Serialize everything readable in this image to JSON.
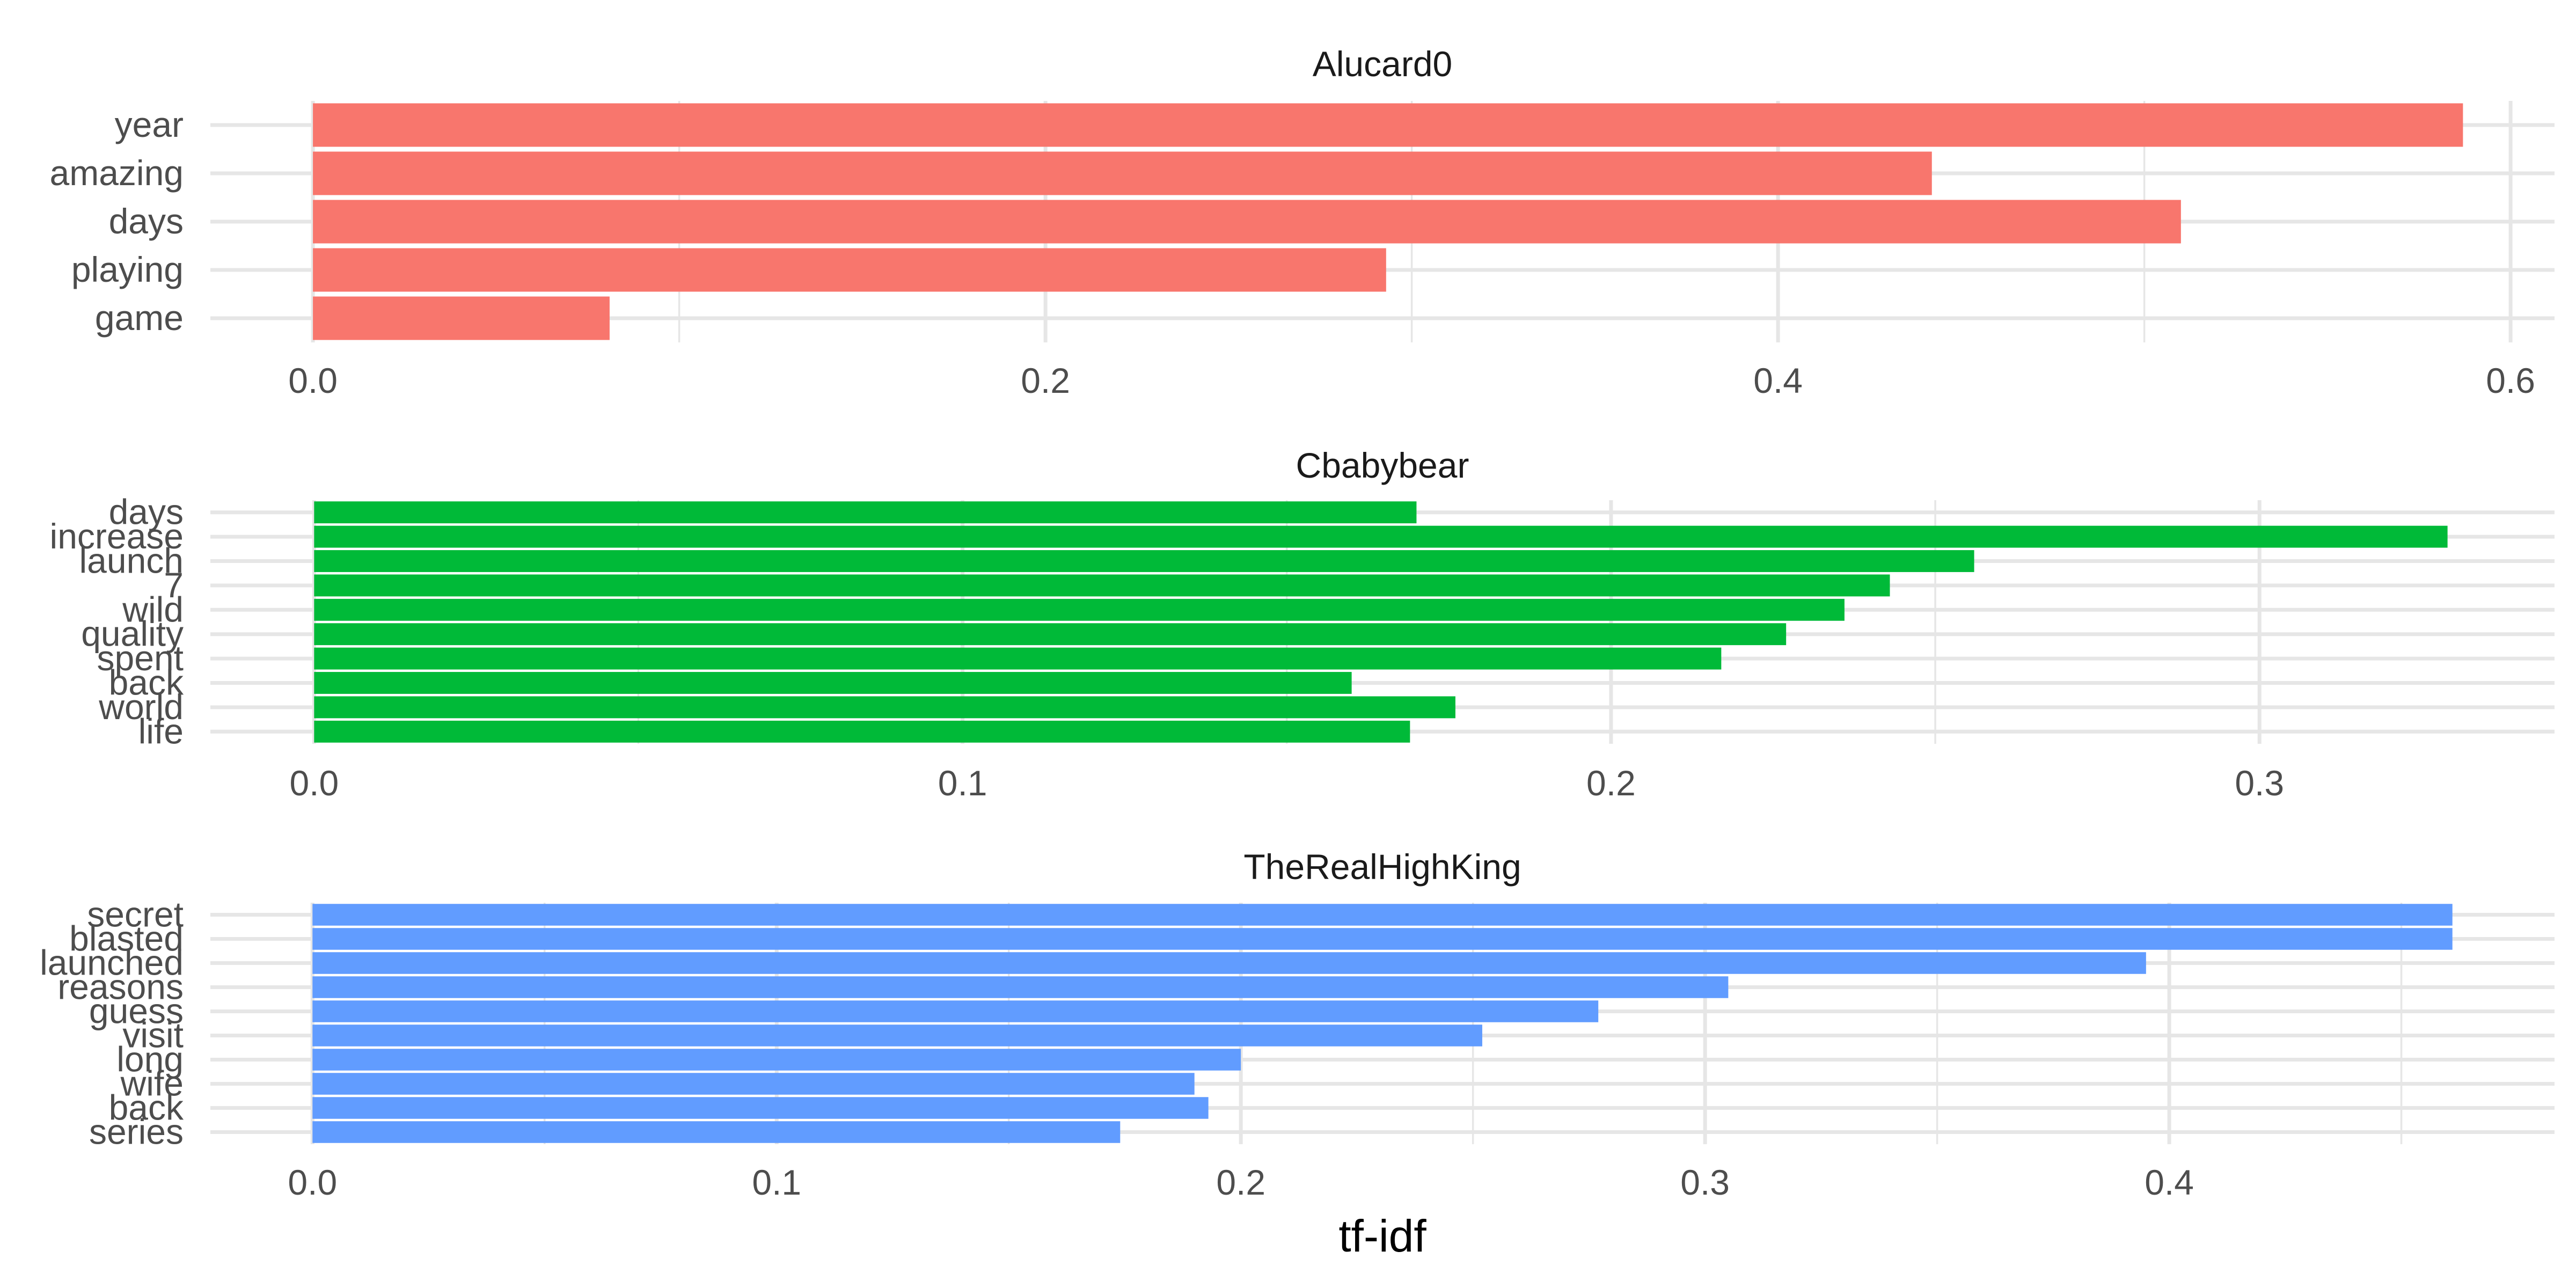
{
  "chart_data": {
    "type": "bar",
    "orientation": "horizontal",
    "xlabel": "tf-idf",
    "grid": true,
    "panels": [
      {
        "title": "Alucard0",
        "color": "#F8766D",
        "categories": [
          "year",
          "amazing",
          "days",
          "playing",
          "game"
        ],
        "values": [
          0.587,
          0.442,
          0.51,
          0.293,
          0.081
        ],
        "xlim": [
          -0.028,
          0.612
        ],
        "xticks": [
          0.0,
          0.2,
          0.4,
          0.6
        ],
        "xtick_labels": [
          "0.0",
          "0.2",
          "0.4",
          "0.6"
        ],
        "minor_ticks": [
          0.1,
          0.3,
          0.5
        ]
      },
      {
        "title": "Cbabybear",
        "color": "#00BA38",
        "categories": [
          "days",
          "increase",
          "launch",
          "7",
          "wild",
          "quality",
          "spent",
          "back",
          "world",
          "life"
        ],
        "values": [
          0.17,
          0.329,
          0.256,
          0.243,
          0.236,
          0.227,
          0.217,
          0.16,
          0.176,
          0.169
        ],
        "xlim": [
          -0.016,
          0.3455
        ],
        "xticks": [
          0.0,
          0.1,
          0.2,
          0.3
        ],
        "xtick_labels": [
          "0.0",
          "0.1",
          "0.2",
          "0.3"
        ],
        "minor_ticks": [
          0.05,
          0.15,
          0.25
        ]
      },
      {
        "title": "TheRealHighKing",
        "color": "#619CFF",
        "categories": [
          "secret",
          "blasted",
          "launched",
          "reasons",
          "guess",
          "visit",
          "long",
          "wife",
          "back",
          "series"
        ],
        "values": [
          0.461,
          0.461,
          0.395,
          0.305,
          0.277,
          0.252,
          0.2,
          0.19,
          0.193,
          0.174
        ],
        "xlim": [
          -0.022,
          0.483
        ],
        "xticks": [
          0.0,
          0.1,
          0.2,
          0.3,
          0.4
        ],
        "xtick_labels": [
          "0.0",
          "0.1",
          "0.2",
          "0.3",
          "0.4"
        ],
        "minor_ticks": [
          0.05,
          0.15,
          0.25,
          0.35,
          0.45
        ]
      }
    ]
  }
}
